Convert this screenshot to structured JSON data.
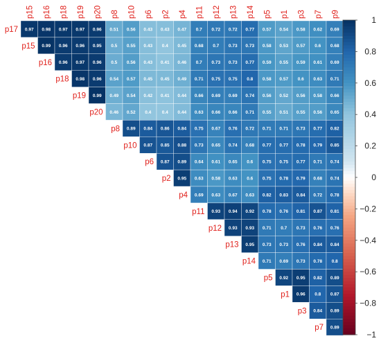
{
  "chart_data": {
    "type": "heatmap",
    "variables": [
      "p15",
      "p16",
      "p18",
      "p19",
      "p20",
      "p8",
      "p10",
      "p6",
      "p2",
      "p4",
      "p11",
      "p12",
      "p13",
      "p14",
      "p5",
      "p1",
      "p3",
      "p7",
      "p9"
    ],
    "row_labels": [
      "p17",
      "p15",
      "p16",
      "p18",
      "p19",
      "p20",
      "p8",
      "p10",
      "p6",
      "p2",
      "p4",
      "p11",
      "p12",
      "p13",
      "p14",
      "p5",
      "p1",
      "p3",
      "p7"
    ],
    "values": [
      [
        0.97,
        0.98,
        0.97,
        0.97,
        0.96,
        0.51,
        0.56,
        0.43,
        0.43,
        0.47,
        0.7,
        0.72,
        0.72,
        0.77,
        0.57,
        0.54,
        0.58,
        0.62,
        0.69
      ],
      [
        0.99,
        0.96,
        0.96,
        0.95,
        0.5,
        0.55,
        0.43,
        0.4,
        0.45,
        0.68,
        0.7,
        0.73,
        0.73,
        0.58,
        0.53,
        0.57,
        0.6,
        0.68
      ],
      [
        0.96,
        0.97,
        0.96,
        0.5,
        0.56,
        0.43,
        0.41,
        0.46,
        0.7,
        0.73,
        0.73,
        0.77,
        0.59,
        0.55,
        0.59,
        0.61,
        0.69
      ],
      [
        0.98,
        0.96,
        0.54,
        0.57,
        0.45,
        0.45,
        0.49,
        0.71,
        0.75,
        0.75,
        0.8,
        0.58,
        0.57,
        0.6,
        0.63,
        0.71
      ],
      [
        0.99,
        0.49,
        0.54,
        0.42,
        0.41,
        0.44,
        0.66,
        0.69,
        0.69,
        0.74,
        0.56,
        0.52,
        0.56,
        0.58,
        0.66
      ],
      [
        0.46,
        0.52,
        0.4,
        0.4,
        0.44,
        0.63,
        0.66,
        0.66,
        0.71,
        0.55,
        0.51,
        0.55,
        0.56,
        0.65
      ],
      [
        0.89,
        0.84,
        0.86,
        0.84,
        0.75,
        0.67,
        0.76,
        0.72,
        0.71,
        0.71,
        0.73,
        0.77,
        0.82
      ],
      [
        0.87,
        0.85,
        0.88,
        0.73,
        0.65,
        0.74,
        0.68,
        0.77,
        0.77,
        0.78,
        0.79,
        0.85
      ],
      [
        0.87,
        0.89,
        0.64,
        0.61,
        0.65,
        0.6,
        0.75,
        0.75,
        0.77,
        0.71,
        0.74
      ],
      [
        0.95,
        0.63,
        0.58,
        0.63,
        0.6,
        0.75,
        0.78,
        0.79,
        0.68,
        0.74
      ],
      [
        0.69,
        0.63,
        0.67,
        0.63,
        0.82,
        0.83,
        0.84,
        0.72,
        0.78
      ],
      [
        0.93,
        0.94,
        0.92,
        0.78,
        0.76,
        0.81,
        0.87,
        0.81
      ],
      [
        0.93,
        0.93,
        0.71,
        0.7,
        0.73,
        0.76,
        0.76
      ],
      [
        0.95,
        0.73,
        0.73,
        0.76,
        0.84,
        0.84
      ],
      [
        0.71,
        0.69,
        0.73,
        0.78,
        0.8
      ],
      [
        0.92,
        0.95,
        0.82,
        0.89
      ],
      [
        0.96,
        0.8,
        0.87
      ],
      [
        0.84,
        0.89
      ],
      [
        0.89
      ]
    ],
    "colorbar": {
      "range": [
        -1,
        1
      ],
      "ticks": [
        "1",
        "0.8",
        "0.6",
        "0.4",
        "0.2",
        "0",
        "−0.2",
        "−0.4",
        "−0.6",
        "−0.8",
        "−1"
      ],
      "colors": {
        "negative": "#67001f",
        "neutral": "#ffffff",
        "positive": "#053061"
      }
    },
    "label_color": "#e0201b"
  }
}
